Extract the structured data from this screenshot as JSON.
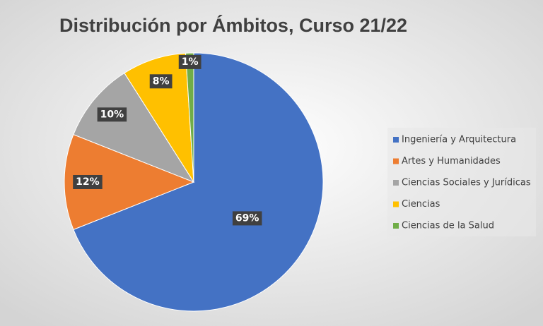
{
  "chart_data": {
    "type": "pie",
    "title": "Distribución por Ámbitos, Curso 21/22",
    "categories": [
      "Ingeniería y Arquitectura",
      "Artes y Humanidades",
      "Ciencias Sociales y Jurídicas",
      "Ciencias",
      "Ciencias de la Salud"
    ],
    "values": [
      69,
      12,
      10,
      8,
      1
    ],
    "value_labels": [
      "69%",
      "12%",
      "10%",
      "8%",
      "1%"
    ],
    "colors": [
      "#4472c4",
      "#ed7d31",
      "#a5a5a5",
      "#ffc000",
      "#70ad47"
    ],
    "legend": "right"
  }
}
